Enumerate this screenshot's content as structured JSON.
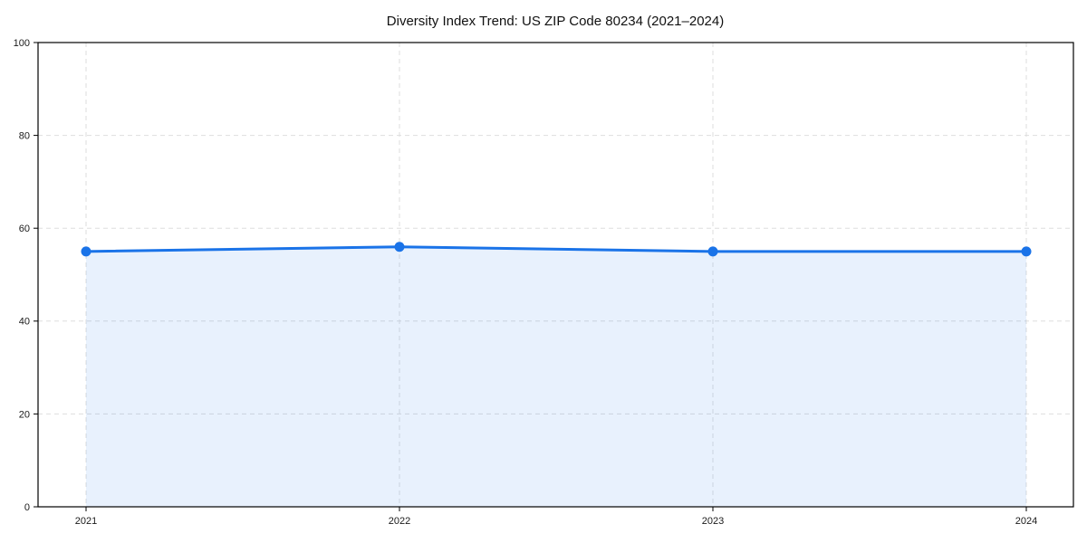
{
  "chart_data": {
    "type": "area",
    "title": "Diversity Index Trend: US ZIP Code 80234 (2021–2024)",
    "x": [
      2021,
      2022,
      2023,
      2024
    ],
    "values": [
      55,
      56,
      55,
      55
    ],
    "xticks": [
      "2021",
      "2022",
      "2023",
      "2024"
    ],
    "yticks": [
      0,
      20,
      40,
      60,
      80,
      100
    ],
    "ylim": [
      0,
      100
    ],
    "xlabel": "",
    "ylabel": "",
    "grid": true,
    "grid_style": "dashed",
    "legend": false,
    "line_color": "#1a73e8",
    "marker_color": "#1a73e8",
    "fill_color": "#1a73e8",
    "fill_opacity": 0.1,
    "grid_color": "#dedede",
    "axis_color": "#000000",
    "background_color": "#ffffff"
  }
}
